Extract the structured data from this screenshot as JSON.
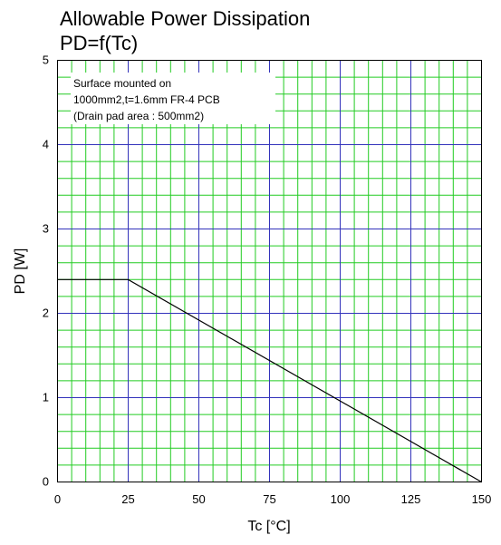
{
  "chart_data": {
    "type": "line",
    "title": "Allowable Power Dissipation",
    "subtitle": "PD=f(Tc)",
    "xlabel": "Tc [°C]",
    "ylabel": "PD [W]",
    "xlim": [
      0,
      150
    ],
    "ylim": [
      0,
      5
    ],
    "x_ticks": [
      0,
      25,
      50,
      75,
      100,
      125,
      150
    ],
    "y_ticks": [
      0,
      1,
      2,
      3,
      4,
      5
    ],
    "x_tick_labels": [
      "0",
      "25",
      "50",
      "75",
      "100",
      "125",
      "150"
    ],
    "y_tick_labels": [
      "0",
      "1",
      "2",
      "3",
      "4",
      "5"
    ],
    "grid": true,
    "annotation": [
      "Surface mounted on",
      "1000mm2,t=1.6mm FR-4 PCB",
      "(Drain pad area : 500mm2)"
    ],
    "series": [
      {
        "x": [
          0,
          25,
          150
        ],
        "y": [
          2.4,
          2.4,
          0
        ],
        "color": "#000000"
      }
    ],
    "colors": {
      "major_grid": "#3333bb",
      "minor_grid": "#22cc22",
      "line": "#000000"
    }
  }
}
